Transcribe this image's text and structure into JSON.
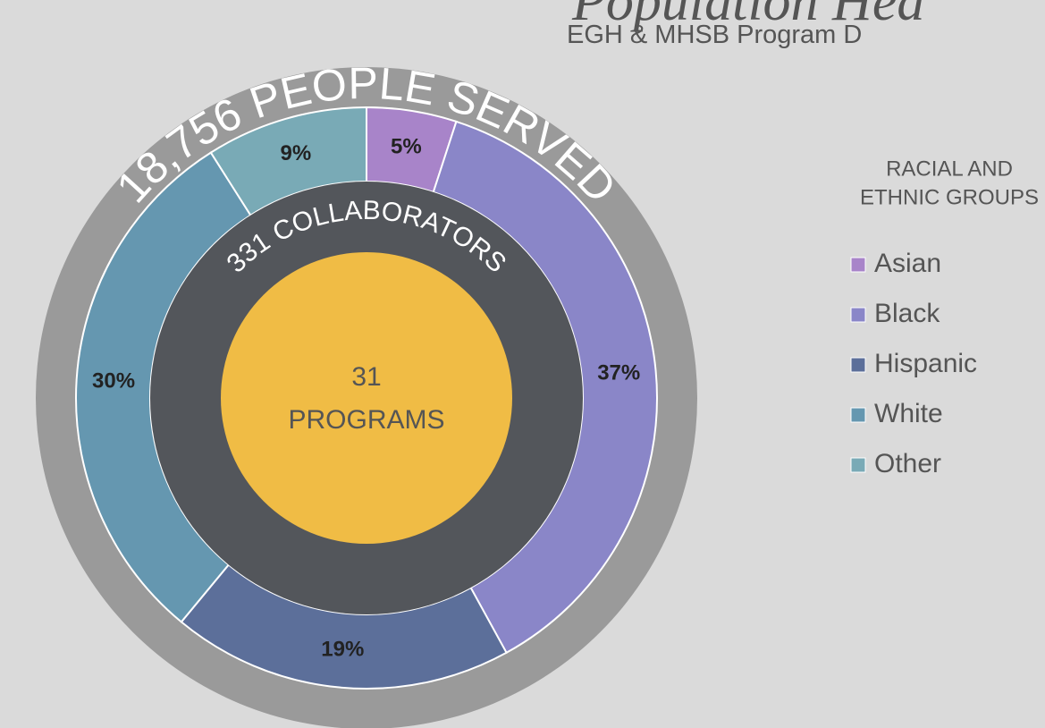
{
  "chart_data": {
    "type": "donut",
    "title": "Population Hea",
    "subtitle": "EGH & MHSB Program D",
    "outer_ring_label": "18,756 PEOPLE SERVED",
    "inner_ring_label": "331 COLLABORATORS",
    "center_label": [
      "31",
      "PROGRAMS"
    ],
    "legend_title": [
      "RACIAL AND",
      "ETHNIC GROUPS"
    ],
    "categories": [
      "Asian",
      "Black",
      "Hispanic",
      "White",
      "Other"
    ],
    "values": [
      5,
      37,
      19,
      30,
      9
    ],
    "value_labels": [
      "5%",
      "37%",
      "19%",
      "30%",
      "9%"
    ],
    "colors": [
      "#a884c9",
      "#8a86c8",
      "#5c6f9a",
      "#6597b0",
      "#79aab6"
    ],
    "legend": "right"
  }
}
